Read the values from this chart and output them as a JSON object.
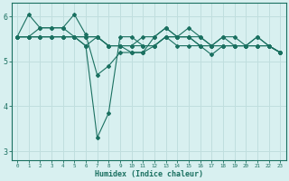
{
  "xlabel": "Humidex (Indice chaleur)",
  "ylabel": "",
  "bg_color": "#d8f0f0",
  "line_color": "#1a7060",
  "grid_color": "#c0dede",
  "xlim": [
    -0.5,
    23.5
  ],
  "ylim": [
    2.8,
    6.3
  ],
  "yticks": [
    3,
    4,
    5,
    6
  ],
  "xticks": [
    0,
    1,
    2,
    3,
    4,
    5,
    6,
    7,
    8,
    9,
    10,
    11,
    12,
    13,
    14,
    15,
    16,
    17,
    18,
    19,
    20,
    21,
    22,
    23
  ],
  "lines": [
    [
      5.55,
      6.05,
      5.75,
      5.75,
      5.75,
      6.05,
      5.6,
      4.7,
      4.9,
      5.2,
      5.2,
      5.2,
      5.55,
      5.75,
      5.55,
      5.55,
      5.35,
      5.35,
      5.35,
      5.35,
      5.35,
      5.35,
      5.35,
      5.2
    ],
    [
      5.55,
      5.55,
      5.75,
      5.75,
      5.75,
      5.55,
      5.35,
      3.3,
      3.85,
      5.55,
      5.55,
      5.35,
      5.35,
      5.55,
      5.35,
      5.35,
      5.35,
      5.15,
      5.35,
      5.35,
      5.35,
      5.35,
      5.35,
      5.2
    ],
    [
      5.55,
      5.55,
      5.55,
      5.55,
      5.55,
      5.55,
      5.55,
      5.55,
      5.35,
      5.35,
      5.35,
      5.35,
      5.35,
      5.55,
      5.55,
      5.55,
      5.55,
      5.35,
      5.55,
      5.55,
      5.35,
      5.55,
      5.35,
      5.2
    ],
    [
      5.55,
      5.55,
      5.55,
      5.55,
      5.55,
      5.55,
      5.55,
      5.55,
      5.35,
      5.35,
      5.35,
      5.55,
      5.55,
      5.75,
      5.55,
      5.55,
      5.35,
      5.35,
      5.35,
      5.35,
      5.35,
      5.55,
      5.35,
      5.2
    ],
    [
      5.55,
      5.55,
      5.55,
      5.55,
      5.55,
      5.55,
      5.35,
      5.55,
      5.35,
      5.35,
      5.2,
      5.2,
      5.35,
      5.55,
      5.55,
      5.75,
      5.55,
      5.35,
      5.55,
      5.35,
      5.35,
      5.35,
      5.35,
      5.2
    ]
  ]
}
